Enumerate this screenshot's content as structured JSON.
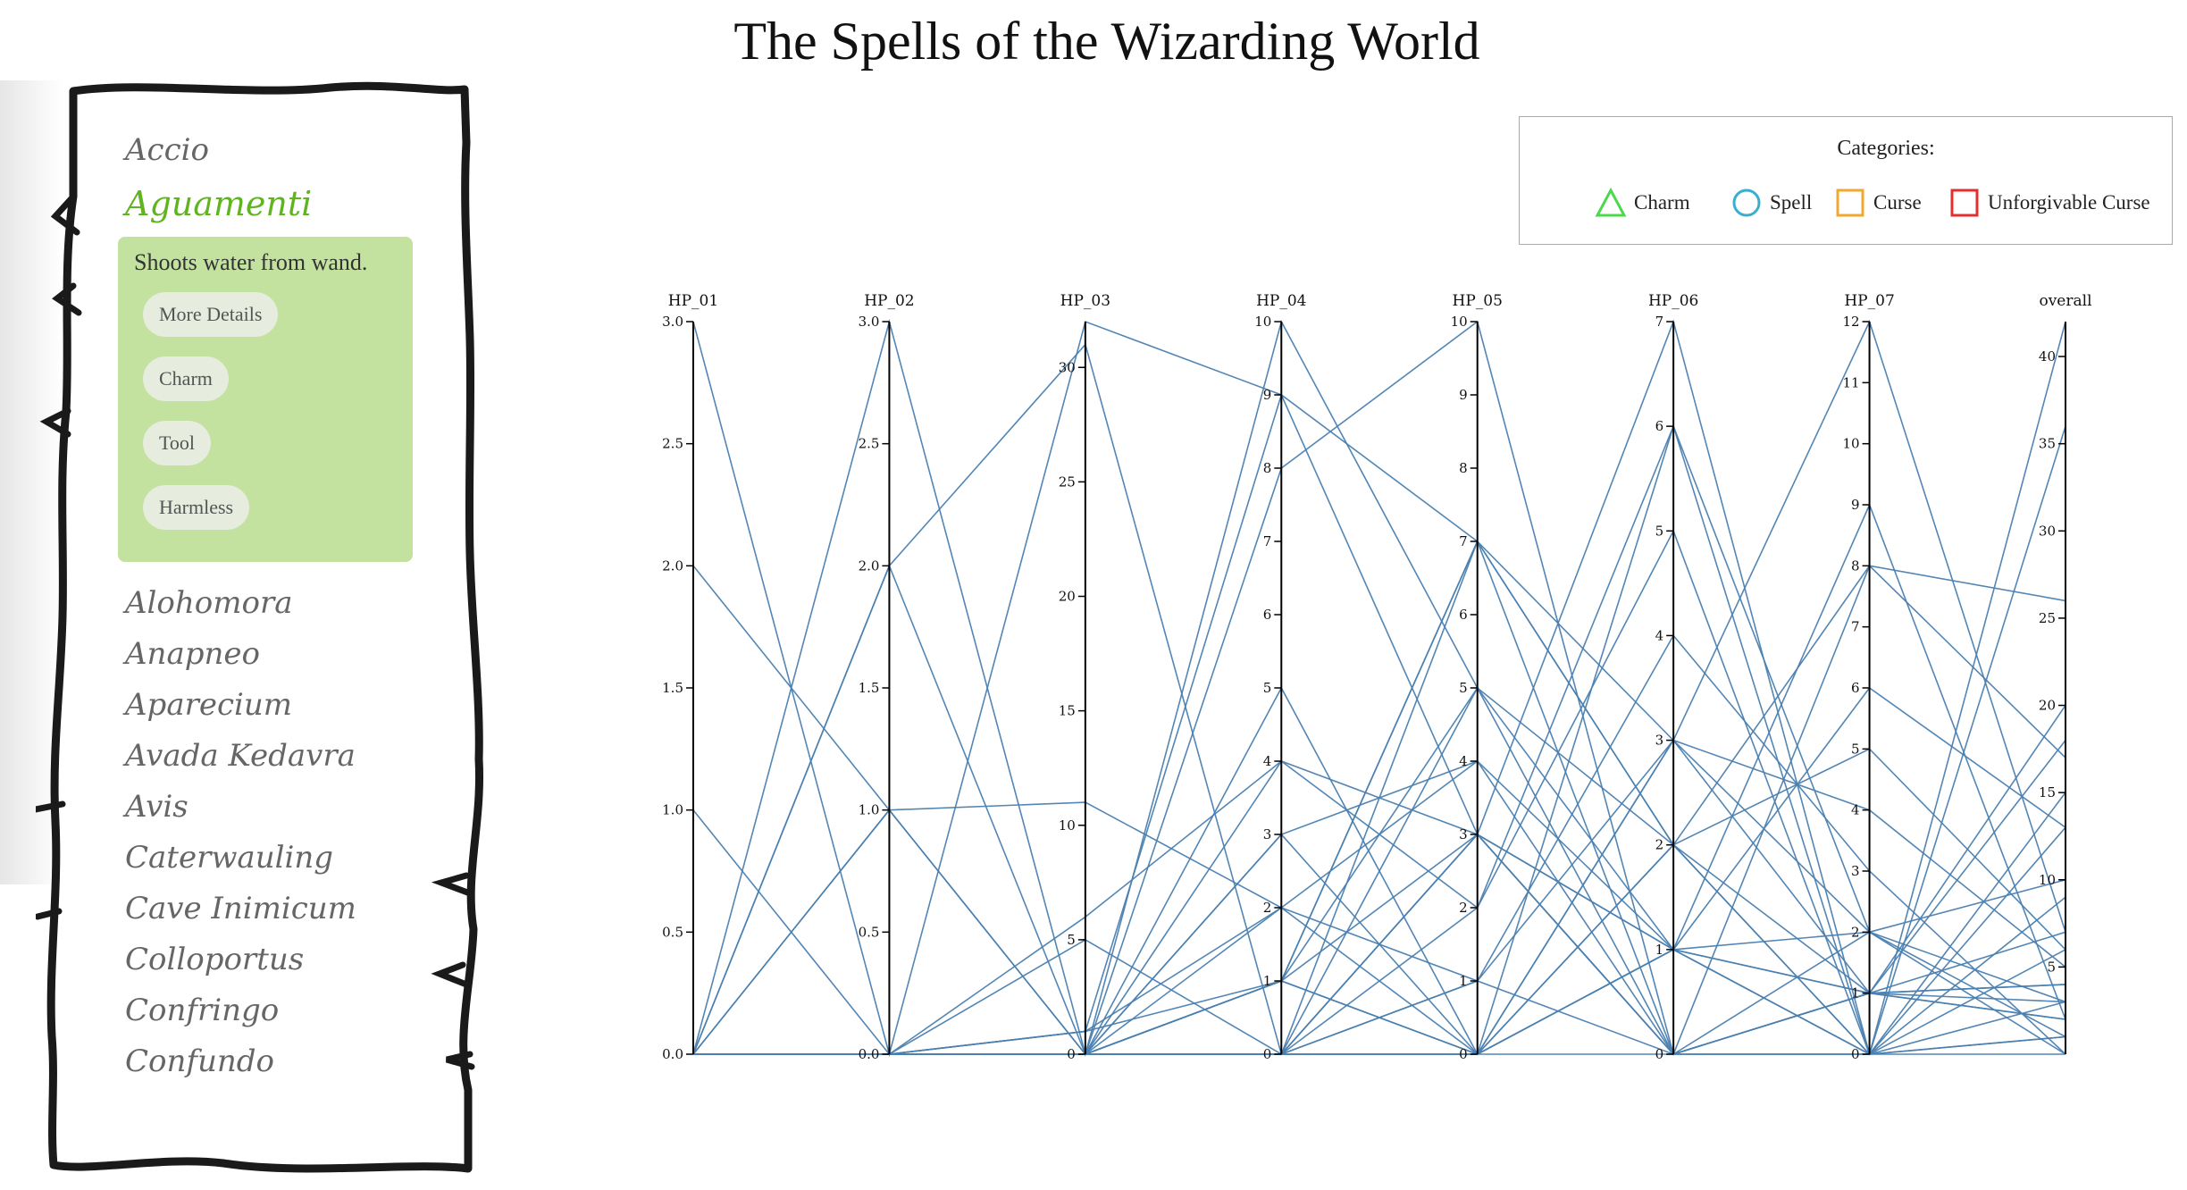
{
  "title": "The Spells of the Wizarding World",
  "sidebar": {
    "spells_before": [
      "Accio"
    ],
    "selected": {
      "name": "Aguamenti",
      "description": "Shoots water from wand.",
      "buttons": [
        "More Details",
        "Charm",
        "Tool",
        "Harmless"
      ]
    },
    "spells_after": [
      "Alohomora",
      "Anapneo",
      "Aparecium",
      "Avada Kedavra",
      "Avis",
      "Caterwauling",
      "Cave Inimicum",
      "Colloportus",
      "Confringo",
      "Confundo"
    ]
  },
  "legend": {
    "title": "Categories:",
    "items": [
      {
        "label": "Charm",
        "shape": "triangle",
        "color": "#4cd84c"
      },
      {
        "label": "Spell",
        "shape": "circle",
        "color": "#3aaed0"
      },
      {
        "label": "Curse",
        "shape": "square",
        "color": "#f0a830"
      },
      {
        "label": "Unforgivable Curse",
        "shape": "square",
        "color": "#e03030"
      }
    ]
  },
  "chart_data": {
    "type": "parallel-coordinates",
    "line_color": "#4a7fb0",
    "axes": [
      {
        "name": "HP_01",
        "min": 0,
        "max": 3,
        "ticks": [
          "0.0",
          "0.5",
          "1.0",
          "1.5",
          "2.0",
          "2.5",
          "3.0"
        ],
        "tick_values": [
          0,
          0.5,
          1,
          1.5,
          2,
          2.5,
          3
        ]
      },
      {
        "name": "HP_02",
        "min": 0,
        "max": 3,
        "ticks": [
          "0.0",
          "0.5",
          "1.0",
          "1.5",
          "2.0",
          "2.5",
          "3.0"
        ],
        "tick_values": [
          0,
          0.5,
          1,
          1.5,
          2,
          2.5,
          3
        ]
      },
      {
        "name": "HP_03",
        "min": 0,
        "max": 32,
        "ticks": [
          "0",
          "5",
          "10",
          "15",
          "20",
          "25",
          "30"
        ],
        "tick_values": [
          0,
          5,
          10,
          15,
          20,
          25,
          30
        ]
      },
      {
        "name": "HP_04",
        "min": 0,
        "max": 10,
        "ticks": [
          "0",
          "1",
          "2",
          "3",
          "4",
          "5",
          "6",
          "7",
          "8",
          "9",
          "10"
        ],
        "tick_values": [
          0,
          1,
          2,
          3,
          4,
          5,
          6,
          7,
          8,
          9,
          10
        ]
      },
      {
        "name": "HP_05",
        "min": 0,
        "max": 10,
        "ticks": [
          "0",
          "1",
          "2",
          "3",
          "4",
          "5",
          "6",
          "7",
          "8",
          "9",
          "10"
        ],
        "tick_values": [
          0,
          1,
          2,
          3,
          4,
          5,
          6,
          7,
          8,
          9,
          10
        ]
      },
      {
        "name": "HP_06",
        "min": 0,
        "max": 7,
        "ticks": [
          "0",
          "1",
          "2",
          "3",
          "4",
          "5",
          "6",
          "7"
        ],
        "tick_values": [
          0,
          1,
          2,
          3,
          4,
          5,
          6,
          7
        ]
      },
      {
        "name": "HP_07",
        "min": 0,
        "max": 12,
        "ticks": [
          "0",
          "1",
          "2",
          "3",
          "4",
          "5",
          "6",
          "7",
          "8",
          "9",
          "10",
          "11",
          "12"
        ],
        "tick_values": [
          0,
          1,
          2,
          3,
          4,
          5,
          6,
          7,
          8,
          9,
          10,
          11,
          12
        ]
      },
      {
        "name": "overall",
        "min": 0,
        "max": 42,
        "ticks": [
          "5",
          "10",
          "15",
          "20",
          "25",
          "30",
          "35",
          "40"
        ],
        "tick_values": [
          5,
          10,
          15,
          20,
          25,
          30,
          35,
          40
        ]
      }
    ],
    "lines": [
      [
        3,
        0,
        32,
        9,
        7,
        2,
        0,
        13
      ],
      [
        2,
        1,
        0,
        1,
        7,
        3,
        1,
        18
      ],
      [
        1,
        0,
        5,
        0,
        3,
        1,
        1,
        7
      ],
      [
        0,
        3,
        0,
        10,
        5,
        1,
        0,
        42
      ],
      [
        0,
        2,
        31,
        0,
        3,
        0,
        0,
        36
      ],
      [
        0,
        1,
        11,
        2,
        0,
        2,
        0,
        3
      ],
      [
        0,
        0,
        0,
        8,
        10,
        0,
        1,
        20
      ],
      [
        0,
        0,
        6,
        4,
        2,
        6,
        0,
        9
      ],
      [
        0,
        2,
        0,
        1,
        7,
        0,
        8,
        17
      ],
      [
        0,
        0,
        0,
        0,
        1,
        3,
        12,
        7
      ],
      [
        0,
        0,
        1,
        9,
        3,
        7,
        0,
        15
      ],
      [
        0,
        1,
        0,
        3,
        4,
        1,
        6,
        13
      ],
      [
        0,
        0,
        0,
        1,
        5,
        2,
        5,
        6
      ],
      [
        0,
        0,
        0,
        0,
        0,
        6,
        2,
        3
      ],
      [
        0,
        0,
        0,
        5,
        0,
        1,
        9,
        2
      ],
      [
        0,
        0,
        1,
        2,
        1,
        4,
        3,
        0
      ],
      [
        0,
        0,
        0,
        0,
        0,
        0,
        0,
        0
      ],
      [
        0,
        0,
        0,
        1,
        0,
        3,
        2,
        1
      ],
      [
        0,
        0,
        0,
        4,
        3,
        0,
        1,
        4
      ],
      [
        0,
        0,
        0,
        0,
        2,
        5,
        0,
        1
      ],
      [
        0,
        0,
        1,
        1,
        3,
        0,
        2,
        10
      ],
      [
        0,
        0,
        0,
        0,
        0,
        2,
        1,
        2
      ],
      [
        0,
        0,
        0,
        0,
        5,
        0,
        1,
        2
      ],
      [
        0,
        0,
        0,
        3,
        0,
        3,
        4,
        5
      ],
      [
        0,
        0,
        0,
        0,
        1,
        0,
        0,
        1
      ],
      [
        0,
        0,
        0,
        0,
        7,
        2,
        8,
        26
      ],
      [
        0,
        0,
        0,
        1,
        0,
        1,
        2,
        0
      ],
      [
        0,
        0,
        0,
        0,
        3,
        1,
        0,
        6
      ],
      [
        0,
        0,
        0,
        2,
        4,
        0,
        1,
        4
      ],
      [
        0,
        0,
        0,
        0,
        0,
        1,
        1,
        3
      ]
    ]
  }
}
